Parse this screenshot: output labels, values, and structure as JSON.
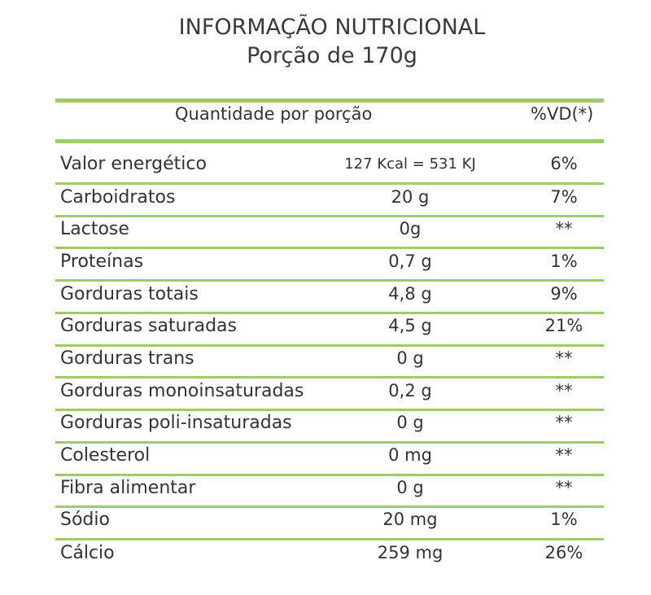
{
  "title": {
    "line1": "INFORMAÇÃO NUTRICIONAL",
    "line2": "Porção de 170g"
  },
  "header": {
    "quantity": "Quantidade por porção",
    "vd": "%VD(*)"
  },
  "colors": {
    "rule": "#9ccb6c",
    "text": "#333333"
  },
  "rows": [
    {
      "name": "Valor energético",
      "amount": "127 Kcal = 531 KJ",
      "vd": "6%"
    },
    {
      "name": "Carboidratos",
      "amount": "20 g",
      "vd": "7%"
    },
    {
      "name": "Lactose",
      "amount": "0g",
      "vd": "**"
    },
    {
      "name": "Proteínas",
      "amount": "0,7 g",
      "vd": "1%"
    },
    {
      "name": "Gorduras totais",
      "amount": "4,8 g",
      "vd": "9%"
    },
    {
      "name": "Gorduras saturadas",
      "amount": "4,5 g",
      "vd": "21%"
    },
    {
      "name": "Gorduras trans",
      "amount": "0 g",
      "vd": "**"
    },
    {
      "name": "Gorduras monoinsaturadas",
      "amount": "0,2 g",
      "vd": "**"
    },
    {
      "name": "Gorduras poli-insaturadas",
      "amount": "0 g",
      "vd": "**"
    },
    {
      "name": "Colesterol",
      "amount": "0 mg",
      "vd": "**"
    },
    {
      "name": "Fibra alimentar",
      "amount": "0 g",
      "vd": "**"
    },
    {
      "name": "Sódio",
      "amount": "20 mg",
      "vd": "1%"
    },
    {
      "name": "Cálcio",
      "amount": "259 mg",
      "vd": "26%"
    }
  ]
}
